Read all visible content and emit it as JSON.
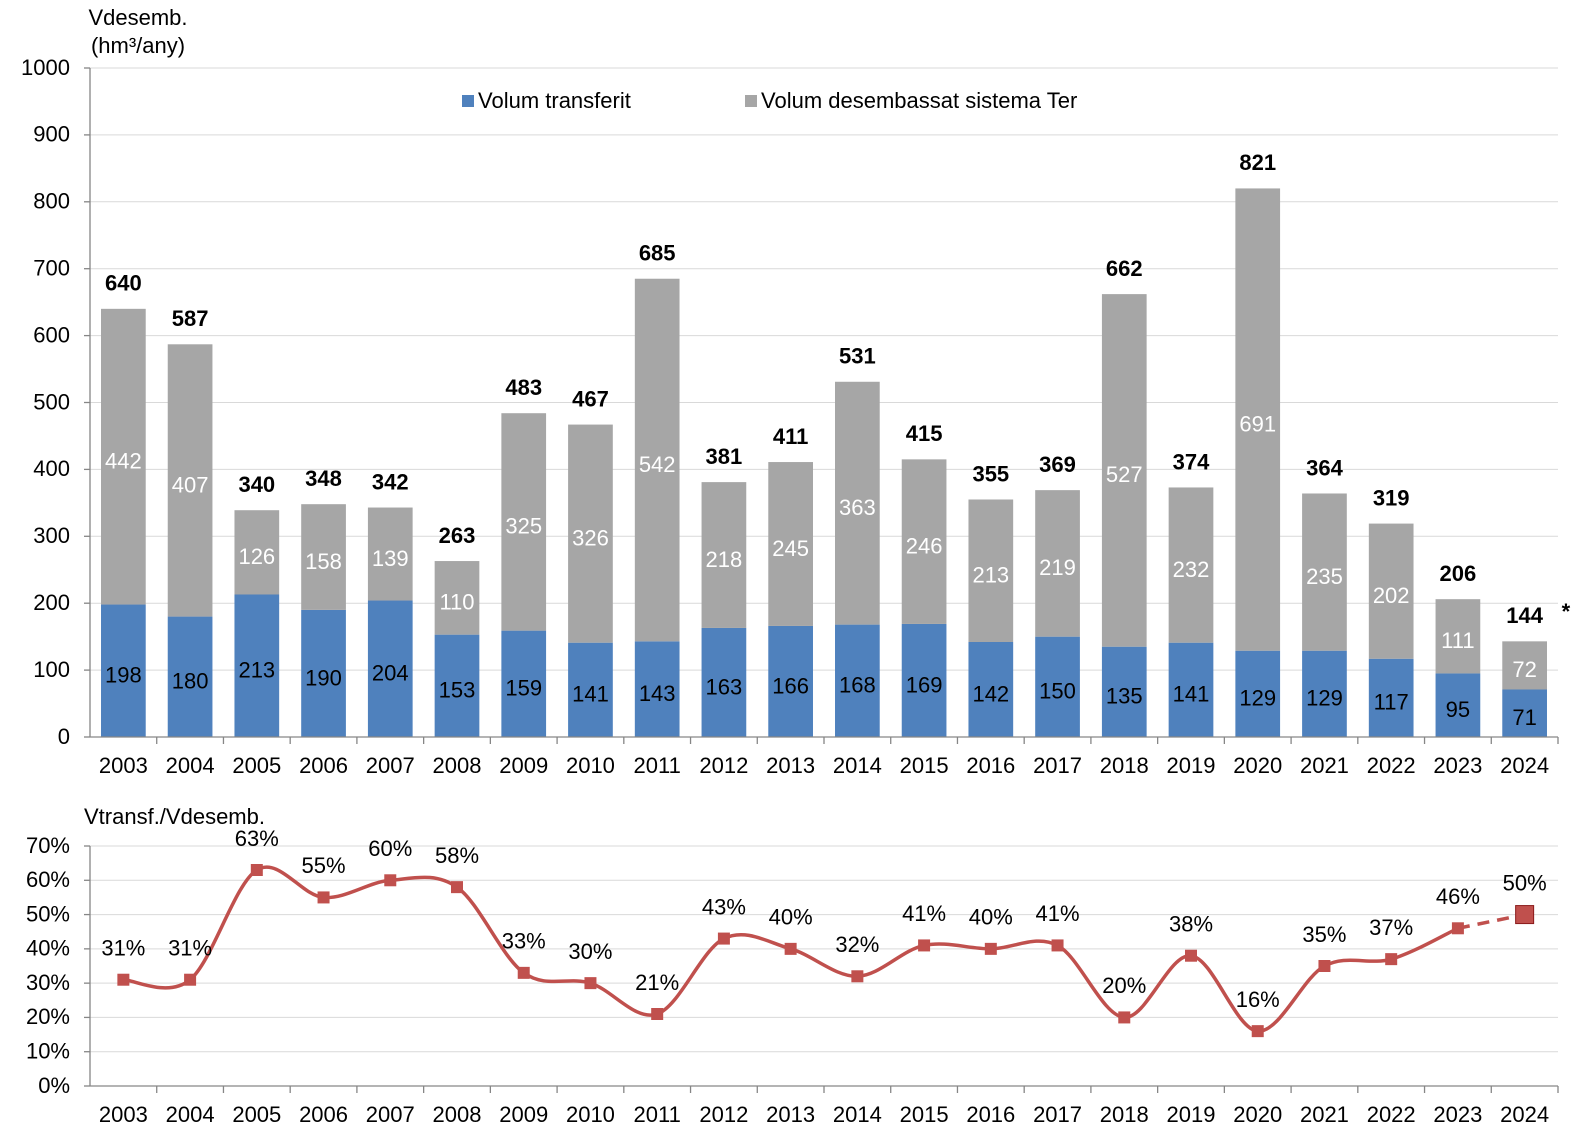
{
  "chart_data": [
    {
      "type": "bar",
      "stacked": true,
      "y_label": [
        "Vdesemb.",
        "(hm³/any)"
      ],
      "categories": [
        "2003",
        "2004",
        "2005",
        "2006",
        "2007",
        "2008",
        "2009",
        "2010",
        "2011",
        "2012",
        "2013",
        "2014",
        "2015",
        "2016",
        "2017",
        "2018",
        "2019",
        "2020",
        "2021",
        "2022",
        "2023",
        "2024"
      ],
      "series": [
        {
          "name": "Volum transferit",
          "color": "#4f81bd",
          "label_color": "#000000",
          "values": [
            198,
            180,
            213,
            190,
            204,
            153,
            159,
            141,
            143,
            163,
            166,
            168,
            169,
            142,
            150,
            135,
            141,
            129,
            129,
            117,
            95,
            71
          ]
        },
        {
          "name": "Volum desembassat sistema Ter",
          "color": "#a6a6a6",
          "label_color": "#ffffff",
          "values": [
            442,
            407,
            126,
            158,
            139,
            110,
            325,
            326,
            542,
            218,
            245,
            363,
            246,
            213,
            219,
            527,
            232,
            691,
            235,
            202,
            111,
            72
          ]
        }
      ],
      "totals": [
        640,
        587,
        340,
        348,
        342,
        263,
        483,
        467,
        685,
        381,
        411,
        531,
        415,
        355,
        369,
        662,
        374,
        821,
        364,
        319,
        206,
        144
      ],
      "annotation": "*",
      "ylim": [
        0,
        1000
      ],
      "yticks": [
        0,
        100,
        200,
        300,
        400,
        500,
        600,
        700,
        800,
        900,
        1000
      ],
      "grid": true,
      "legend": "top"
    },
    {
      "type": "line",
      "smooth": true,
      "last_point_estimate": true,
      "y_label": "Vtransf./Vdesemb.",
      "categories": [
        "2003",
        "2004",
        "2005",
        "2006",
        "2007",
        "2008",
        "2009",
        "2010",
        "2011",
        "2012",
        "2013",
        "2014",
        "2015",
        "2016",
        "2017",
        "2018",
        "2019",
        "2020",
        "2021",
        "2022",
        "2023",
        "2024"
      ],
      "series": [
        {
          "color": "#c0504d",
          "values": [
            31,
            31,
            63,
            55,
            60,
            58,
            33,
            30,
            21,
            43,
            40,
            32,
            41,
            40,
            41,
            20,
            38,
            16,
            35,
            37,
            46,
            50
          ],
          "value_labels": [
            "31%",
            "31%",
            "63%",
            "55%",
            "60%",
            "58%",
            "33%",
            "30%",
            "21%",
            "43%",
            "40%",
            "32%",
            "41%",
            "40%",
            "41%",
            "20%",
            "38%",
            "16%",
            "35%",
            "37%",
            "46%",
            "50%"
          ]
        }
      ],
      "ylim": [
        0,
        70
      ],
      "yticks": [
        {
          "value": 0,
          "label": "0%"
        },
        {
          "value": 10,
          "label": "10%"
        },
        {
          "value": 20,
          "label": "20%"
        },
        {
          "value": 30,
          "label": "30%"
        },
        {
          "value": 40,
          "label": "40%"
        },
        {
          "value": 50,
          "label": "50%"
        },
        {
          "value": 60,
          "label": "60%"
        },
        {
          "value": 70,
          "label": "70%"
        }
      ],
      "grid": true
    }
  ]
}
